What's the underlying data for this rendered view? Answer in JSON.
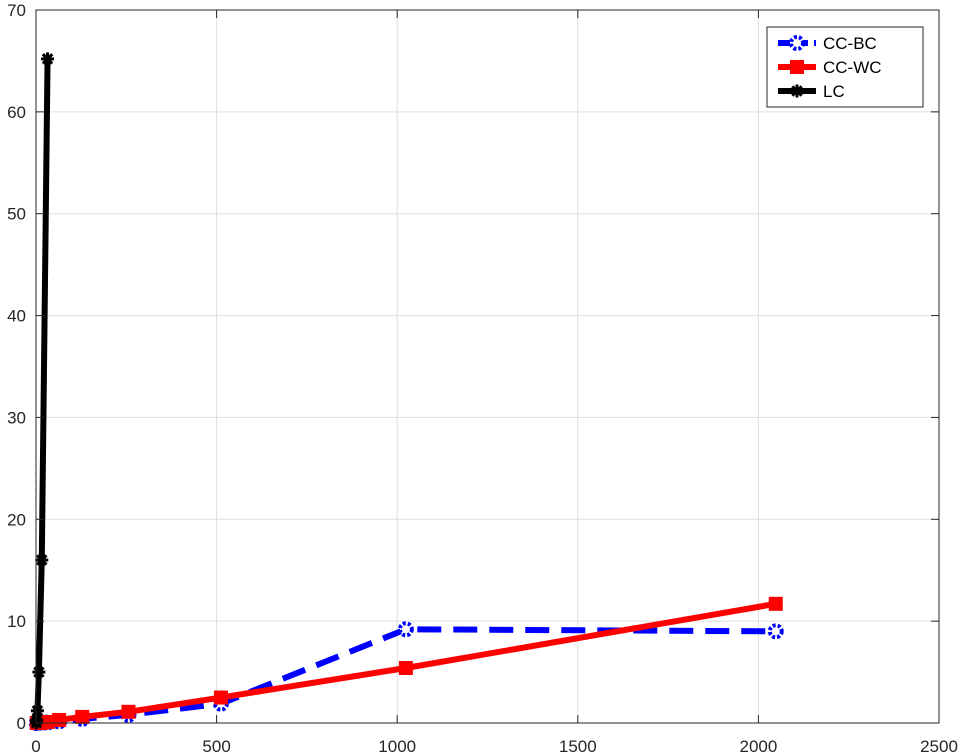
{
  "chart_data": {
    "type": "line",
    "title": "",
    "xlabel": "",
    "ylabel": "",
    "xlim": [
      0,
      2500
    ],
    "ylim": [
      0,
      70
    ],
    "xticks": [
      0,
      500,
      1000,
      1500,
      2000,
      2500
    ],
    "yticks": [
      0,
      10,
      20,
      30,
      40,
      50,
      60,
      70
    ],
    "xtick_labels": [
      "0",
      "500",
      "1000",
      "1500",
      "2000",
      "2500"
    ],
    "ytick_labels": [
      "0",
      "10",
      "20",
      "30",
      "40",
      "50",
      "60",
      "70"
    ],
    "grid": true,
    "legend_position": "top-right",
    "series": [
      {
        "name": "CC-BC",
        "color": "#0000ff",
        "line_style": "dashed",
        "marker": "circle",
        "x": [
          2,
          4,
          8,
          16,
          32,
          64,
          128,
          256,
          512,
          1024,
          2048
        ],
        "y": [
          0.0,
          0.0,
          0.01,
          0.02,
          0.05,
          0.15,
          0.4,
          0.8,
          1.9,
          9.2,
          9.0
        ]
      },
      {
        "name": "CC-WC",
        "color": "#ff0000",
        "line_style": "solid",
        "marker": "square",
        "x": [
          2,
          4,
          8,
          16,
          32,
          64,
          128,
          256,
          512,
          1024,
          2048
        ],
        "y": [
          0.0,
          0.0,
          0.01,
          0.03,
          0.1,
          0.3,
          0.6,
          1.1,
          2.5,
          5.4,
          11.7
        ]
      },
      {
        "name": "LC",
        "color": "#000000",
        "line_style": "solid",
        "marker": "asterisk",
        "x": [
          1,
          2,
          4,
          8,
          16,
          32
        ],
        "y": [
          0.0,
          0.3,
          1.2,
          5.0,
          16.0,
          65.2
        ]
      }
    ]
  }
}
